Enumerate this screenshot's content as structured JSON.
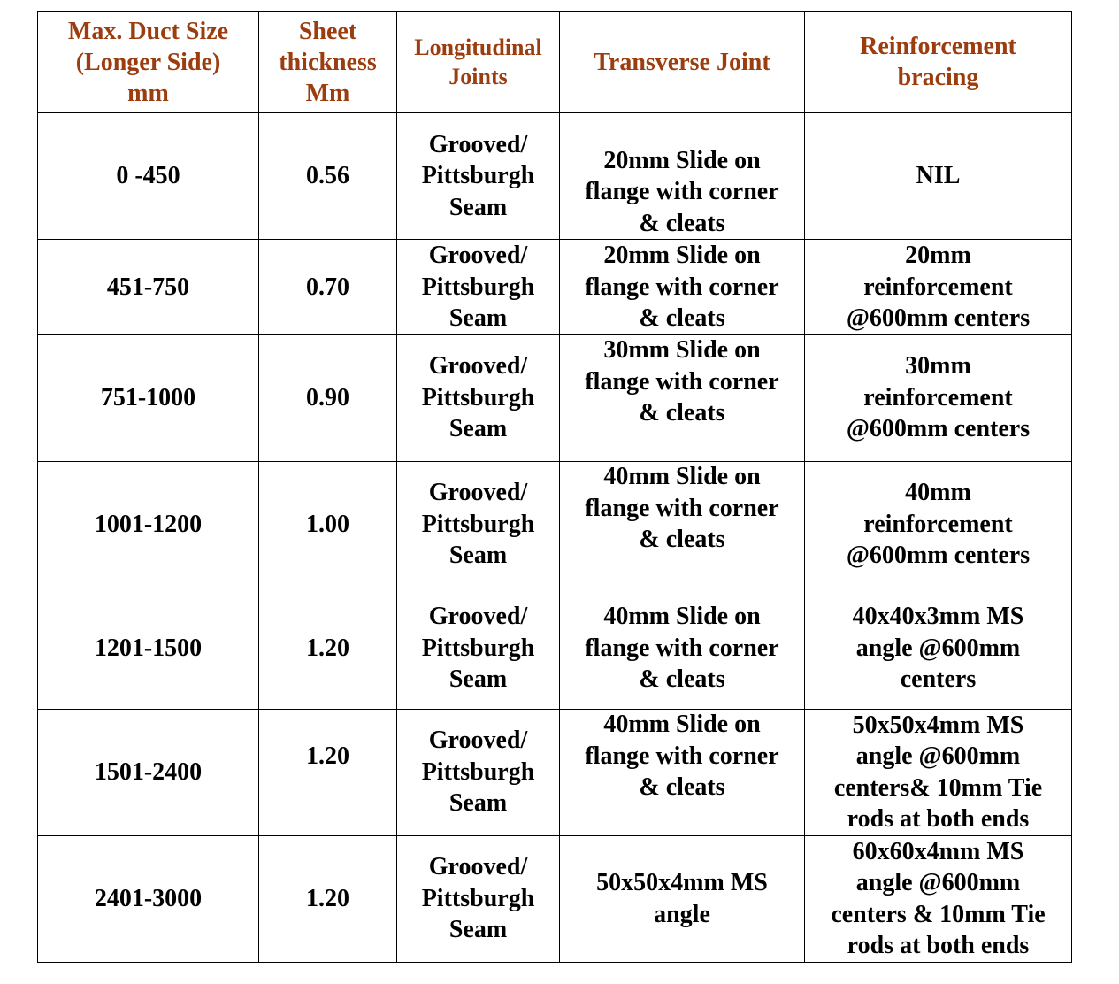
{
  "header_color": "#9c3d0f",
  "headers": {
    "max_duct_size": "Max. Duct Size\n(Longer Side)\nmm",
    "sheet_thickness": "Sheet\nthickness\nMm",
    "longitudinal_joints": "Longitudinal\nJoints",
    "transverse_joint": "Transverse Joint",
    "reinforcement_bracing": "Reinforcement\nbracing"
  },
  "rows": [
    {
      "size": "0 -450",
      "thickness": "0.56",
      "longitudinal": "Grooved/\nPittsburgh\nSeam",
      "transverse": "20mm Slide on\nflange with corner\n& cleats",
      "reinforcement": "NIL"
    },
    {
      "size": "451-750",
      "thickness": "0.70",
      "longitudinal": "Grooved/\nPittsburgh\nSeam",
      "transverse": "20mm Slide on\nflange with corner\n& cleats",
      "reinforcement": "20mm\nreinforcement\n@600mm centers"
    },
    {
      "size": "751-1000",
      "thickness": "0.90",
      "longitudinal": "Grooved/\nPittsburgh\nSeam",
      "transverse": "30mm Slide on\nflange with corner\n& cleats",
      "reinforcement": "30mm\nreinforcement\n@600mm centers"
    },
    {
      "size": "1001-1200",
      "thickness": "1.00",
      "longitudinal": "Grooved/\nPittsburgh\nSeam",
      "transverse": "40mm Slide on\nflange with corner\n& cleats",
      "reinforcement": "40mm\nreinforcement\n@600mm centers"
    },
    {
      "size": "1201-1500",
      "thickness": "1.20",
      "longitudinal": "Grooved/\nPittsburgh\nSeam",
      "transverse": "40mm Slide on\nflange with corner\n& cleats",
      "reinforcement": "40x40x3mm MS\nangle @600mm\ncenters"
    },
    {
      "size": "1501-2400",
      "thickness": "1.20",
      "longitudinal": "Grooved/\nPittsburgh\nSeam",
      "transverse": "40mm Slide on\nflange with corner\n& cleats",
      "reinforcement": "50x50x4mm MS\nangle @600mm\ncenters& 10mm Tie\nrods at both ends"
    },
    {
      "size": "2401-3000",
      "thickness": "1.20",
      "longitudinal": "Grooved/\nPittsburgh\nSeam",
      "transverse": "50x50x4mm MS\nangle",
      "reinforcement": "60x60x4mm MS\nangle @600mm\ncenters & 10mm Tie\nrods at both ends"
    }
  ]
}
